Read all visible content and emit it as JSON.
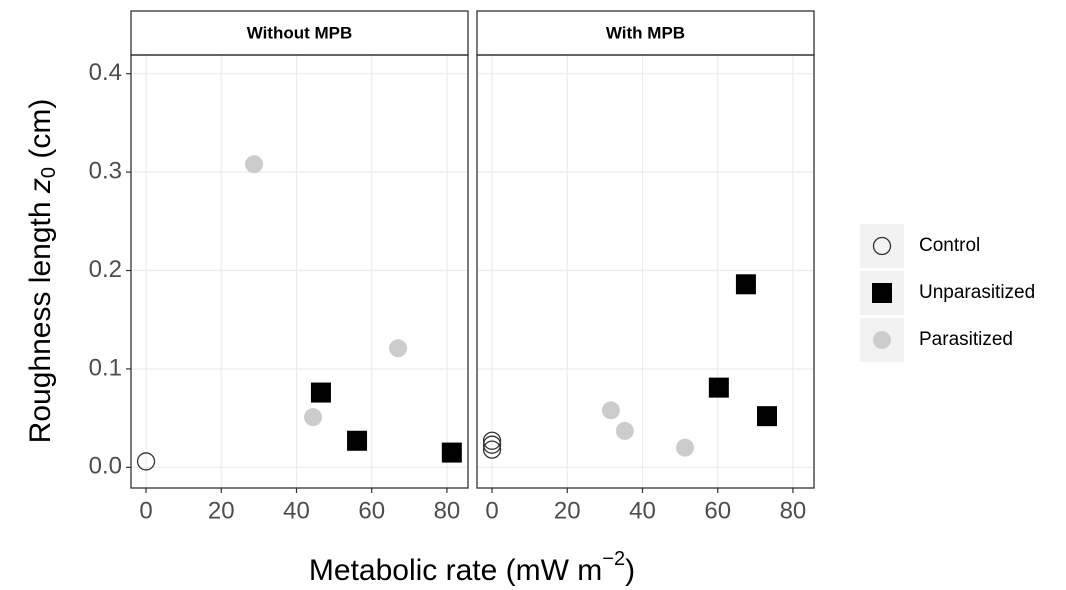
{
  "chart_data": {
    "type": "scatter",
    "facets": [
      "Without MPB",
      "With MPB"
    ],
    "x_label": {
      "text": "Metabolic rate (mW m",
      "sup": "−2",
      "end": ")"
    },
    "y_label": {
      "text": "Roughness length ",
      "var": "z",
      "sub": "0",
      "end": " (cm)"
    },
    "xlim": [
      -4,
      85.6
    ],
    "ylim": [
      -0.021,
      0.419
    ],
    "xticks": [
      0,
      20,
      40,
      60,
      80
    ],
    "yticks": [
      {
        "value": 0,
        "label": "0.0"
      },
      0.1,
      0.2,
      0.3,
      0.4
    ],
    "grid": true,
    "legend": "right",
    "series": [
      {
        "name": "Control",
        "color": "#333333",
        "marker": "open-circle",
        "facet_data": [
          {
            "x": [
              0
            ],
            "y": [
              0.006
            ]
          },
          {
            "x": [
              0,
              0,
              0
            ],
            "y": [
              0.027,
              0.023,
              0.018
            ]
          }
        ]
      },
      {
        "name": "Unparasitized",
        "color": "#000000",
        "marker": "square",
        "facet_data": [
          {
            "x": [
              46.5,
              56.1,
              81.3
            ],
            "y": [
              0.076,
              0.027,
              0.015
            ]
          },
          {
            "x": [
              60.3,
              67.5,
              73.1
            ],
            "y": [
              0.081,
              0.186,
              0.052
            ]
          }
        ]
      },
      {
        "name": "Parasitized",
        "color": "#cccccc",
        "marker": "circle",
        "facet_data": [
          {
            "x": [
              28.7,
              44.4,
              67.0
            ],
            "y": [
              0.308,
              0.051,
              0.121
            ]
          },
          {
            "x": [
              31.6,
              35.3,
              51.3
            ],
            "y": [
              0.058,
              0.037,
              0.02
            ]
          }
        ]
      }
    ]
  }
}
